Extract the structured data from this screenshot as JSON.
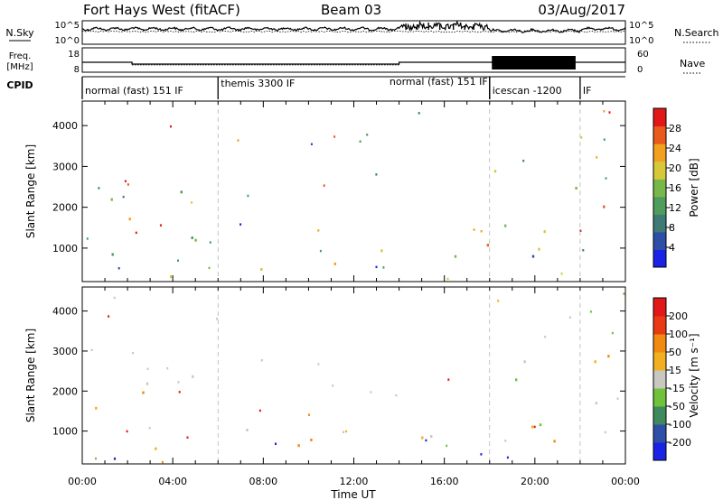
{
  "header": {
    "site": "Fort Hays West (fitACF)",
    "beam": "Beam 03",
    "date": "03/Aug/2017"
  },
  "params": {
    "nsky_label": "N.Sky",
    "nsky_ticks": [
      "10^5",
      "10^0"
    ],
    "nsearch_label": "N.Search",
    "freq_label_1": "Freq.",
    "freq_label_2": "[MHz]",
    "freq_ticks": [
      "18",
      "8"
    ],
    "nave_label": "Nave",
    "nave_ticks": [
      "60",
      "0"
    ],
    "cpid_label": "CPID"
  },
  "modes": [
    {
      "label": "normal (fast) 151 IF",
      "start": 0.0
    },
    {
      "label": "themis 3300 IF",
      "start": 6.0
    },
    {
      "label": "normal (fast) 151 IF",
      "start": 18.0,
      "align": "end"
    },
    {
      "label": "icescan -1200",
      "start": 18.0
    },
    {
      "label": "IF",
      "start": 22.0
    }
  ],
  "chart_data": [
    {
      "type": "heatmap",
      "name": "power",
      "ylabel": "Slant Range [km]",
      "yticks": [
        1000,
        2000,
        3000,
        4000
      ],
      "ylim": [
        180,
        4600
      ],
      "xlim": [
        0,
        24
      ],
      "colorbar": {
        "label": "Power [dB]",
        "ticks": [
          4,
          8,
          12,
          16,
          20,
          24,
          28
        ],
        "colors": [
          "#1a22e6",
          "#2e4fa8",
          "#3f7a74",
          "#4f9c5c",
          "#78b84a",
          "#d7c83a",
          "#f2a020",
          "#ea5a1c",
          "#e21818"
        ],
        "range": [
          0,
          32
        ]
      },
      "regions": [
        {
          "x0": 0.0,
          "x1": 1.6,
          "r0": 1800,
          "r1": 2500,
          "level": 0.45
        },
        {
          "x0": 1.3,
          "x1": 3.6,
          "r0": 1400,
          "r1": 2000,
          "level": 0.6
        },
        {
          "x0": 2.8,
          "x1": 5.3,
          "r0": 1900,
          "r1": 2500,
          "level": 0.4
        },
        {
          "x0": 1.2,
          "x1": 1.9,
          "r0": 2400,
          "r1": 2900,
          "level": 0.45
        },
        {
          "x0": 0.0,
          "x1": 2.2,
          "r0": 300,
          "r1": 1000,
          "level": 0.5
        },
        {
          "x0": 2.0,
          "x1": 8.5,
          "r0": 250,
          "r1": 700,
          "level": 0.7
        },
        {
          "x0": 4.8,
          "x1": 10.5,
          "r0": 600,
          "r1": 1300,
          "level": 0.45
        },
        {
          "x0": 8.0,
          "x1": 11.8,
          "r0": 230,
          "r1": 650,
          "level": 0.75
        },
        {
          "x0": 13.0,
          "x1": 14.6,
          "r0": 500,
          "r1": 1300,
          "level": 0.45
        },
        {
          "x0": 14.8,
          "x1": 17.6,
          "r0": 300,
          "r1": 1000,
          "level": 0.55
        },
        {
          "x0": 17.5,
          "x1": 19.6,
          "r0": 300,
          "r1": 1200,
          "level": 0.85
        },
        {
          "x0": 18.0,
          "x1": 24.0,
          "r0": 1400,
          "r1": 3000,
          "level": 0.6
        },
        {
          "x0": 19.5,
          "x1": 24.0,
          "r0": 500,
          "r1": 1300,
          "level": 0.4
        },
        {
          "x0": 12.6,
          "x1": 13.4,
          "r0": 2000,
          "r1": 2400,
          "level": 0.4
        }
      ]
    },
    {
      "type": "heatmap",
      "name": "velocity",
      "ylabel": "Slant Range [km]",
      "xlabel": "Time UT",
      "yticks": [
        1000,
        2000,
        3000,
        4000
      ],
      "ylim": [
        180,
        4600
      ],
      "xlim": [
        0,
        24
      ],
      "xticks": [
        "00:00",
        "04:00",
        "08:00",
        "12:00",
        "16:00",
        "20:00",
        "00:00"
      ],
      "colorbar": {
        "label": "Velocity [m s⁻¹]",
        "ticks": [
          200,
          100,
          50,
          15,
          -15,
          -50,
          -100,
          -200
        ],
        "colors": [
          "#1a22e6",
          "#2e4fa8",
          "#3f8a5c",
          "#6fc23a",
          "#c8c8c0",
          "#f0b020",
          "#f08a10",
          "#ea3a14",
          "#e21818"
        ]
      },
      "regions": [
        {
          "x0": 0.0,
          "x1": 5.3,
          "r0": 1400,
          "r1": 2600,
          "level": 0.5
        },
        {
          "x0": 0.0,
          "x1": 2.2,
          "r0": 300,
          "r1": 1000,
          "level": 0.5
        },
        {
          "x0": 2.0,
          "x1": 7.0,
          "r0": 250,
          "r1": 600,
          "level": 0.78
        },
        {
          "x0": 7.0,
          "x1": 11.0,
          "r0": 250,
          "r1": 650,
          "level": 0.72
        },
        {
          "x0": 4.8,
          "x1": 10.5,
          "r0": 600,
          "r1": 1300,
          "level": 0.5
        },
        {
          "x0": 13.0,
          "x1": 24.0,
          "r0": 500,
          "r1": 1300,
          "level": 0.5
        },
        {
          "x0": 18.0,
          "x1": 24.0,
          "r0": 1400,
          "r1": 3000,
          "level": 0.5
        },
        {
          "x0": 10.5,
          "x1": 12.0,
          "r0": 250,
          "r1": 450,
          "level": 0.3
        }
      ]
    }
  ]
}
